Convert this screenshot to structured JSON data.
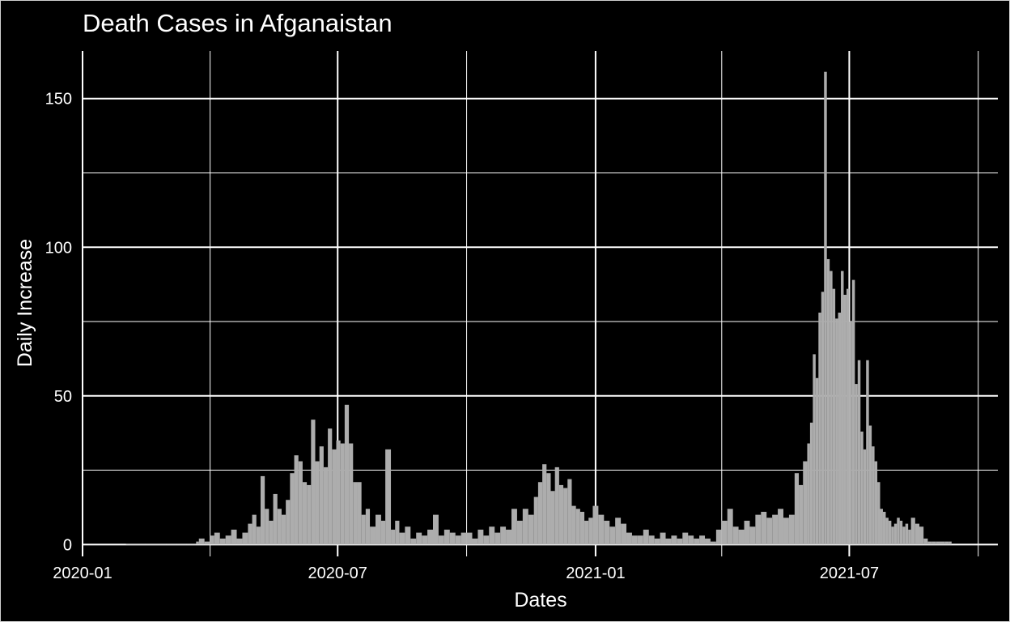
{
  "chart_data": {
    "type": "bar",
    "title": "Death Cases in Afganaistan",
    "xlabel": "Dates",
    "ylabel": "Daily Increase",
    "x_tick_labels": [
      "2020-01",
      "2020-07",
      "2021-01",
      "2021-07"
    ],
    "y_tick_labels": [
      "0",
      "50",
      "100",
      "150"
    ],
    "y_ticks": [
      0,
      50,
      100,
      150
    ],
    "ylim": [
      -4,
      166
    ],
    "xlim": [
      "2020-01-01",
      "2021-10-15"
    ],
    "grid": true,
    "bar_color": "#adadad",
    "background": "#000000",
    "x": [
      "2020-02-01",
      "2020-02-15",
      "2020-03-01",
      "2020-03-08",
      "2020-03-15",
      "2020-03-22",
      "2020-03-24",
      "2020-03-28",
      "2020-04-01",
      "2020-04-04",
      "2020-04-08",
      "2020-04-12",
      "2020-04-16",
      "2020-04-20",
      "2020-04-24",
      "2020-04-28",
      "2020-05-01",
      "2020-05-04",
      "2020-05-07",
      "2020-05-10",
      "2020-05-13",
      "2020-05-16",
      "2020-05-19",
      "2020-05-22",
      "2020-05-25",
      "2020-05-28",
      "2020-05-31",
      "2020-06-03",
      "2020-06-06",
      "2020-06-09",
      "2020-06-12",
      "2020-06-15",
      "2020-06-18",
      "2020-06-21",
      "2020-06-24",
      "2020-06-27",
      "2020-06-30",
      "2020-07-03",
      "2020-07-06",
      "2020-07-09",
      "2020-07-12",
      "2020-07-15",
      "2020-07-18",
      "2020-07-21",
      "2020-07-24",
      "2020-07-28",
      "2020-08-01",
      "2020-08-04",
      "2020-08-08",
      "2020-08-11",
      "2020-08-14",
      "2020-08-18",
      "2020-08-22",
      "2020-08-26",
      "2020-08-30",
      "2020-09-03",
      "2020-09-07",
      "2020-09-11",
      "2020-09-15",
      "2020-09-19",
      "2020-09-23",
      "2020-09-27",
      "2020-10-01",
      "2020-10-05",
      "2020-10-09",
      "2020-10-13",
      "2020-10-17",
      "2020-10-21",
      "2020-10-25",
      "2020-10-29",
      "2020-11-02",
      "2020-11-06",
      "2020-11-10",
      "2020-11-14",
      "2020-11-18",
      "2020-11-21",
      "2020-11-24",
      "2020-11-27",
      "2020-11-30",
      "2020-12-03",
      "2020-12-06",
      "2020-12-09",
      "2020-12-12",
      "2020-12-15",
      "2020-12-18",
      "2020-12-21",
      "2020-12-24",
      "2020-12-27",
      "2020-12-30",
      "2021-01-03",
      "2021-01-07",
      "2021-01-11",
      "2021-01-15",
      "2021-01-19",
      "2021-01-23",
      "2021-01-27",
      "2021-01-31",
      "2021-02-04",
      "2021-02-08",
      "2021-02-12",
      "2021-02-16",
      "2021-02-20",
      "2021-02-24",
      "2021-02-28",
      "2021-03-04",
      "2021-03-08",
      "2021-03-12",
      "2021-03-16",
      "2021-03-20",
      "2021-03-24",
      "2021-03-28",
      "2021-04-01",
      "2021-04-05",
      "2021-04-09",
      "2021-04-13",
      "2021-04-17",
      "2021-04-21",
      "2021-04-25",
      "2021-04-29",
      "2021-05-03",
      "2021-05-07",
      "2021-05-11",
      "2021-05-15",
      "2021-05-19",
      "2021-05-23",
      "2021-05-26",
      "2021-05-29",
      "2021-06-01",
      "2021-06-03",
      "2021-06-05",
      "2021-06-07",
      "2021-06-09",
      "2021-06-11",
      "2021-06-13",
      "2021-06-15",
      "2021-06-17",
      "2021-06-19",
      "2021-06-21",
      "2021-06-23",
      "2021-06-25",
      "2021-06-27",
      "2021-06-29",
      "2021-07-01",
      "2021-07-03",
      "2021-07-05",
      "2021-07-07",
      "2021-07-09",
      "2021-07-11",
      "2021-07-13",
      "2021-07-15",
      "2021-07-17",
      "2021-07-19",
      "2021-07-21",
      "2021-07-23",
      "2021-07-25",
      "2021-07-27",
      "2021-07-29",
      "2021-07-31",
      "2021-08-02",
      "2021-08-04",
      "2021-08-06",
      "2021-08-08",
      "2021-08-10",
      "2021-08-12",
      "2021-08-14",
      "2021-08-17",
      "2021-08-20",
      "2021-08-23",
      "2021-08-26",
      "2021-08-29",
      "2021-09-01",
      "2021-09-04",
      "2021-09-07",
      "2021-09-10"
    ],
    "values": [
      0,
      0,
      0,
      0,
      0,
      1,
      2,
      1,
      3,
      4,
      2,
      3,
      5,
      2,
      4,
      7,
      10,
      6,
      23,
      12,
      8,
      17,
      12,
      10,
      15,
      24,
      30,
      28,
      21,
      20,
      42,
      28,
      33,
      26,
      39,
      32,
      35,
      34,
      47,
      34,
      21,
      21,
      10,
      12,
      6,
      10,
      8,
      32,
      5,
      8,
      4,
      6,
      2,
      4,
      3,
      5,
      10,
      3,
      5,
      4,
      3,
      4,
      4,
      2,
      5,
      3,
      6,
      4,
      6,
      5,
      12,
      8,
      12,
      10,
      16,
      21,
      27,
      24,
      18,
      26,
      20,
      19,
      22,
      13,
      12,
      11,
      8,
      9,
      13,
      10,
      8,
      6,
      9,
      7,
      4,
      3,
      3,
      5,
      3,
      2,
      4,
      2,
      3,
      2,
      4,
      3,
      2,
      3,
      2,
      1,
      5,
      8,
      12,
      6,
      5,
      8,
      6,
      10,
      11,
      9,
      10,
      12,
      9,
      10,
      24,
      20,
      28,
      34,
      41,
      64,
      56,
      78,
      85,
      159,
      96,
      92,
      86,
      76,
      78,
      92,
      84,
      86,
      75,
      89,
      54,
      62,
      38,
      32,
      62,
      40,
      33,
      28,
      21,
      12,
      11,
      9,
      8,
      6,
      7,
      9,
      8,
      6,
      7,
      5,
      9,
      7,
      6,
      2,
      1,
      1,
      1,
      1,
      1,
      1
    ]
  }
}
